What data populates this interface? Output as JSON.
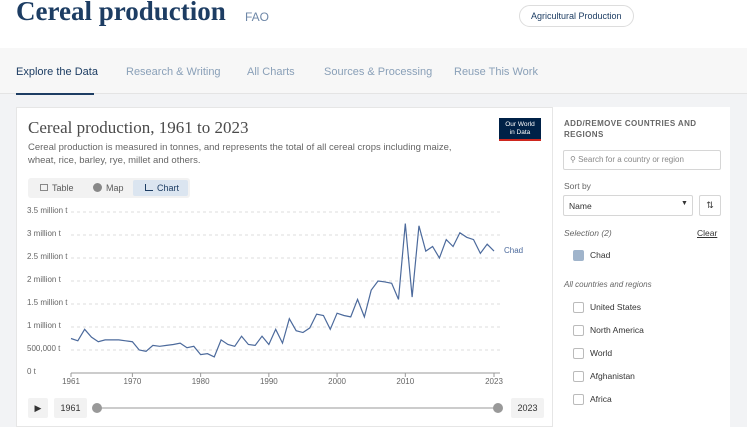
{
  "header": {
    "title": "Cereal production",
    "source": "FAO",
    "tag": "Agricultural Production"
  },
  "nav": [
    "Explore the Data",
    "Research & Writing",
    "All Charts",
    "Sources & Processing",
    "Reuse This Work"
  ],
  "logo": [
    "Our World",
    "in Data"
  ],
  "chart_data": {
    "type": "line",
    "title": "Cereal production, 1961 to 2023",
    "subtitle": "Cereal production is measured in tonnes, and represents the total of all cereal crops including maize, wheat, rice, barley, rye, millet and others.",
    "tabs": [
      "Table",
      "Map",
      "Chart"
    ],
    "x": [
      1961,
      1962,
      1963,
      1964,
      1965,
      1966,
      1967,
      1968,
      1969,
      1970,
      1971,
      1972,
      1973,
      1974,
      1975,
      1976,
      1977,
      1978,
      1979,
      1980,
      1981,
      1982,
      1983,
      1984,
      1985,
      1986,
      1987,
      1988,
      1989,
      1990,
      1991,
      1992,
      1993,
      1994,
      1995,
      1996,
      1997,
      1998,
      1999,
      2000,
      2001,
      2002,
      2003,
      2004,
      2005,
      2006,
      2007,
      2008,
      2009,
      2010,
      2011,
      2012,
      2013,
      2014,
      2015,
      2016,
      2017,
      2018,
      2019,
      2020,
      2021,
      2022,
      2023
    ],
    "series": [
      {
        "name": "Chad",
        "color": "#4c6a9c",
        "values": [
          750000,
          700000,
          950000,
          780000,
          680000,
          720000,
          720000,
          720000,
          700000,
          680000,
          500000,
          470000,
          600000,
          580000,
          600000,
          620000,
          650000,
          550000,
          580000,
          400000,
          420000,
          350000,
          720000,
          620000,
          580000,
          800000,
          620000,
          600000,
          800000,
          620000,
          950000,
          650000,
          1180000,
          920000,
          880000,
          980000,
          1280000,
          1250000,
          950000,
          1300000,
          1250000,
          1220000,
          1600000,
          1220000,
          1800000,
          2000000,
          1980000,
          1950000,
          1600000,
          3250000,
          1650000,
          3200000,
          2650000,
          2750000,
          2500000,
          2900000,
          2750000,
          3050000,
          2950000,
          2900000,
          2600000,
          2800000,
          2650000
        ]
      }
    ],
    "xlim": [
      1961,
      2023
    ],
    "xticks": [
      1961,
      1970,
      1980,
      1990,
      2000,
      2010,
      2023
    ],
    "ylim": [
      0,
      3500000
    ],
    "yticks": [
      {
        "value": 0,
        "label": "0 t"
      },
      {
        "value": 500000,
        "label": "500,000 t"
      },
      {
        "value": 1000000,
        "label": "1 million t"
      },
      {
        "value": 1500000,
        "label": "1.5 million t"
      },
      {
        "value": 2000000,
        "label": "2 million t"
      },
      {
        "value": 2500000,
        "label": "2.5 million t"
      },
      {
        "value": 3000000,
        "label": "3 million t"
      },
      {
        "value": 3500000,
        "label": "3.5 million t"
      }
    ],
    "grid": true
  },
  "timeline": {
    "start": 1961,
    "end": 2023
  },
  "sidebar": {
    "heading": "ADD/REMOVE COUNTRIES AND REGIONS",
    "search": "Search for a country or region",
    "sort_label": "Sort by",
    "sort_value": "Name",
    "selection_label": "Selection (2)",
    "clear": "Clear",
    "selected": [
      "Chad"
    ],
    "all_label": "All countries and regions",
    "entities": [
      "United States",
      "North America",
      "World",
      "Afghanistan",
      "Africa"
    ]
  }
}
